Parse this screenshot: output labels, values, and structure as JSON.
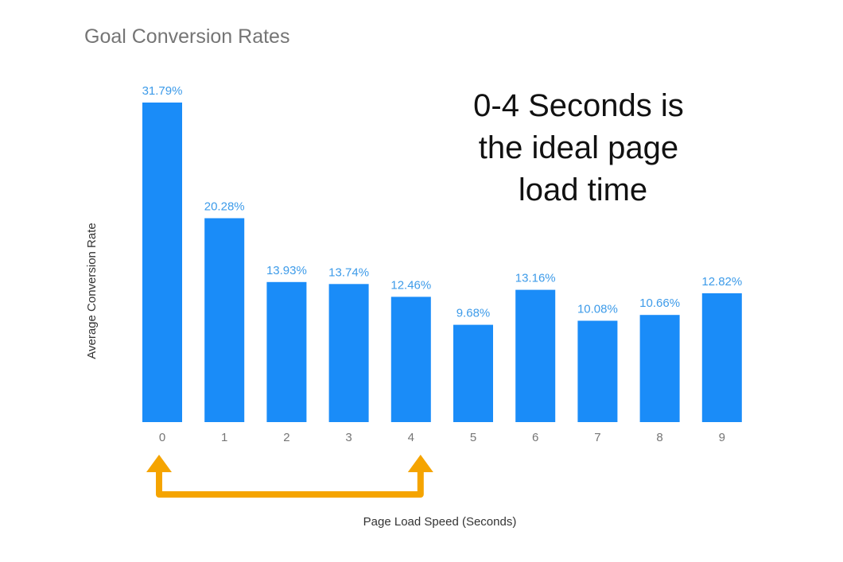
{
  "chart_data": {
    "type": "bar",
    "title": "Goal Conversion Rates",
    "annotation": [
      "0-4 Seconds is",
      "the ideal page",
      "load time"
    ],
    "xlabel": "Page Load Speed (Seconds)",
    "ylabel": "Average Conversion Rate",
    "categories": [
      "0",
      "1",
      "2",
      "3",
      "4",
      "5",
      "6",
      "7",
      "8",
      "9"
    ],
    "values": [
      31.79,
      20.28,
      13.93,
      13.74,
      12.46,
      9.68,
      13.16,
      10.08,
      10.66,
      12.82
    ],
    "value_labels": [
      "31.79%",
      "20.28%",
      "13.93%",
      "13.74%",
      "12.46%",
      "9.68%",
      "13.16%",
      "10.08%",
      "10.66%",
      "12.82%"
    ],
    "ylim": [
      0,
      31.79
    ],
    "grid": false,
    "bar_color": "#1a8cf8",
    "label_color": "#3d9be9",
    "highlight_range": [
      "0",
      "4"
    ],
    "highlight_color": "#f5a400"
  }
}
